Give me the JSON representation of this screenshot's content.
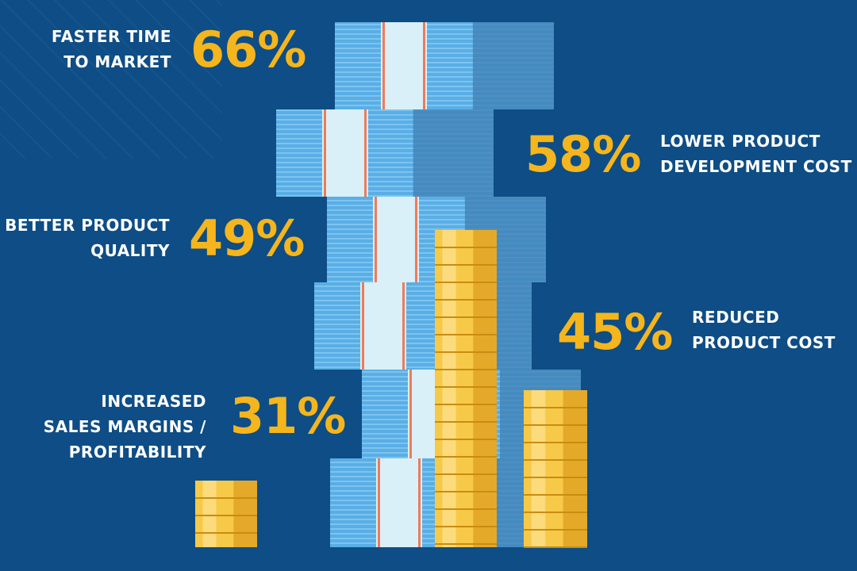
{
  "colors": {
    "background": "#0e4d85",
    "accent": "#f5b51c",
    "text": "#ffffff",
    "bill": "#5aaee6",
    "bill_band": "#d9f0f8",
    "bill_stripe": "#f07a5a",
    "coin": "#f7c948"
  },
  "stats": [
    {
      "lines": [
        "Faster time",
        "to market"
      ],
      "value": "66%"
    },
    {
      "lines": [
        "Lower product",
        "development cost"
      ],
      "value": "58%"
    },
    {
      "lines": [
        "Better product",
        "quality"
      ],
      "value": "49%"
    },
    {
      "lines": [
        "Reduced",
        "product cost"
      ],
      "value": "45%"
    },
    {
      "lines": [
        "Increased",
        "sales margins /",
        "profitability"
      ],
      "value": "31%"
    }
  ]
}
